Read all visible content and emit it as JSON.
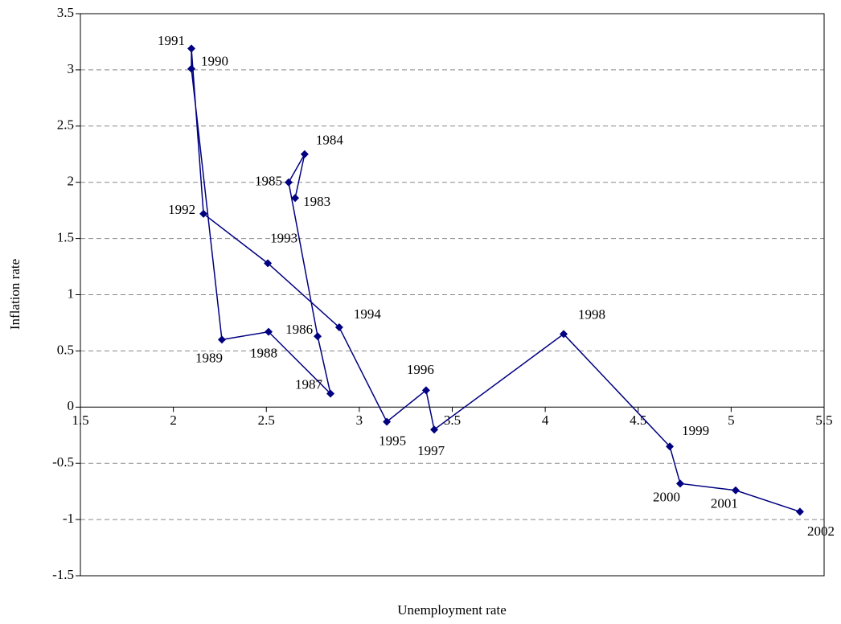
{
  "chart_data": {
    "type": "scatter",
    "connected": true,
    "x_label": "Unemployment rate",
    "y_label": "Inflation rate",
    "color": "#000080",
    "point_labels": [
      "1983",
      "1984",
      "1985",
      "1986",
      "1987",
      "1988",
      "1989",
      "1990",
      "1991",
      "1992",
      "1993",
      "1994",
      "1995",
      "1996",
      "1997",
      "1998",
      "1999",
      "2000",
      "2001",
      "2002"
    ],
    "x": [
      2.655,
      2.706,
      2.62,
      2.776,
      2.845,
      2.512,
      2.261,
      2.097,
      2.097,
      2.162,
      2.508,
      2.892,
      3.148,
      3.359,
      3.403,
      4.099,
      4.67,
      4.726,
      5.024,
      5.37
    ],
    "values": [
      1.86,
      2.25,
      2.0,
      0.63,
      0.12,
      0.67,
      0.6,
      3.01,
      3.19,
      1.72,
      1.28,
      0.71,
      -0.13,
      0.15,
      -0.2,
      0.65,
      -0.35,
      -0.68,
      -0.74,
      -0.93
    ],
    "xlim": [
      1.5,
      5.5
    ],
    "xticks": [
      1.5,
      2,
      2.5,
      3,
      3.5,
      4,
      4.5,
      5,
      5.5
    ],
    "ylim": [
      -1.5,
      3.5
    ],
    "yticks": [
      -1.5,
      -1,
      -0.5,
      0,
      0.5,
      1,
      1.5,
      2,
      2.5,
      3,
      3.5
    ],
    "grid": true
  }
}
